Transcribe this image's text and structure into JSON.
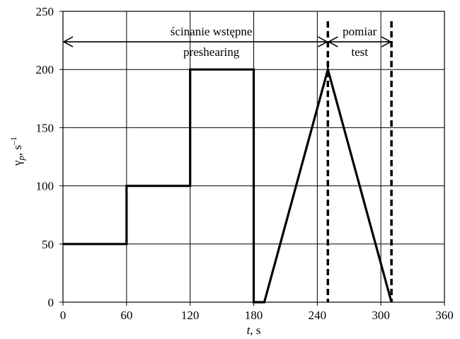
{
  "chart_data": {
    "type": "line",
    "title": "",
    "xlabel": {
      "main": "t",
      "unit": ", s"
    },
    "ylabel": {
      "base": "γ",
      "sub": "p",
      "unit": ", s",
      "sup": "–1"
    },
    "xlim": [
      0,
      360
    ],
    "ylim": [
      0,
      250
    ],
    "x_ticks": [
      0,
      60,
      120,
      180,
      240,
      300,
      360
    ],
    "y_ticks": [
      0,
      50,
      100,
      150,
      200,
      250
    ],
    "grid": true,
    "series": [
      {
        "style": "solid",
        "color": "#000000",
        "points": [
          [
            0,
            50
          ],
          [
            60,
            50
          ],
          [
            60,
            100
          ],
          [
            120,
            100
          ],
          [
            120,
            200
          ],
          [
            180,
            200
          ],
          [
            180,
            0
          ],
          [
            190,
            0
          ],
          [
            250,
            200
          ],
          [
            310,
            0
          ]
        ]
      }
    ],
    "vertical_markers": [
      {
        "x": 250,
        "style": "dashed"
      },
      {
        "x": 310,
        "style": "dashed"
      }
    ],
    "spans": [
      {
        "from": 0,
        "to": 250,
        "y": 225,
        "label_line1": "ścinanie wstępne",
        "label_line2": "preshearing"
      },
      {
        "from": 250,
        "to": 310,
        "y": 225,
        "label_line1": "pomiar",
        "label_line2": "test"
      }
    ]
  }
}
